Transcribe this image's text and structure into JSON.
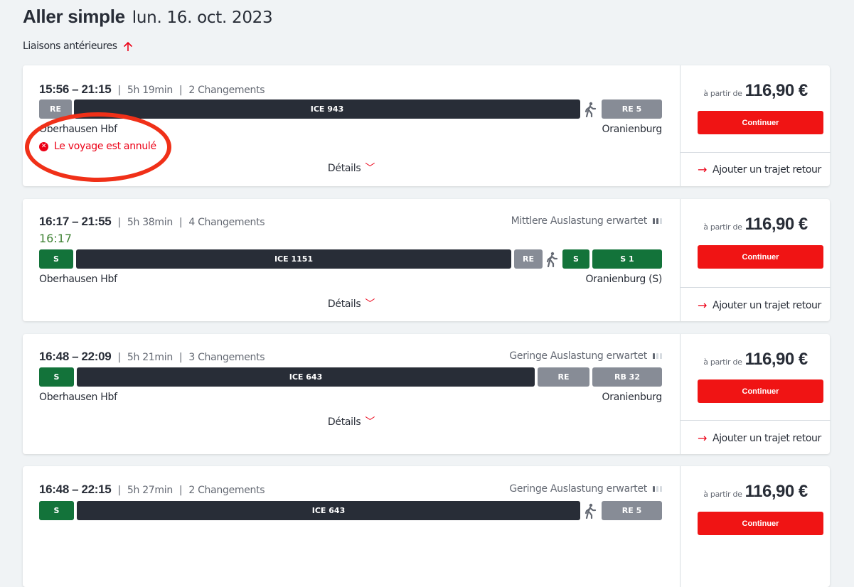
{
  "header": {
    "title": "Aller simple",
    "date": "lun. 16. oct. 2023",
    "earlier": "Liaisons antérieures"
  },
  "common": {
    "from_label": "à partir de",
    "continue": "Continuer",
    "return": "Ajouter un trajet retour",
    "details": "Détails"
  },
  "colors": {
    "accent": "#ec0016",
    "local": "#878c96",
    "ice": "#282d37",
    "sbahn": "#13733a",
    "realtime": "#408335"
  },
  "connections": [
    {
      "dep": "15:56",
      "arr": "21:15",
      "sep": "–",
      "duration": "5h 19min",
      "changes": "2 Changements",
      "segments": [
        "RE",
        "ICE 943",
        "RE 5"
      ],
      "from": "Oberhausen Hbf",
      "to": "Oranienburg",
      "status": "Le voyage est annulé",
      "price": "116,90 €"
    },
    {
      "dep": "16:17",
      "arr": "21:55",
      "sep": "–",
      "duration": "5h 38min",
      "changes": "4 Changements",
      "occupancy": "Mittlere Auslastung erwartet",
      "occupancy_level": 2,
      "realtime": "16:17",
      "segments": [
        "S",
        "ICE 1151",
        "RE",
        "S",
        "S 1"
      ],
      "from": "Oberhausen Hbf",
      "to": "Oranienburg (S)",
      "price": "116,90 €"
    },
    {
      "dep": "16:48",
      "arr": "22:09",
      "sep": "–",
      "duration": "5h 21min",
      "changes": "3 Changements",
      "occupancy": "Geringe Auslastung erwartet",
      "occupancy_level": 1,
      "segments": [
        "S",
        "ICE 643",
        "RE",
        "RB 32"
      ],
      "from": "Oberhausen Hbf",
      "to": "Oranienburg",
      "price": "116,90 €"
    },
    {
      "dep": "16:48",
      "arr": "22:15",
      "sep": "–",
      "duration": "5h 27min",
      "changes": "2 Changements",
      "occupancy": "Geringe Auslastung erwartet",
      "occupancy_level": 1,
      "segments": [
        "S",
        "ICE 643",
        "RE 5"
      ],
      "price": "116,90 €"
    }
  ]
}
